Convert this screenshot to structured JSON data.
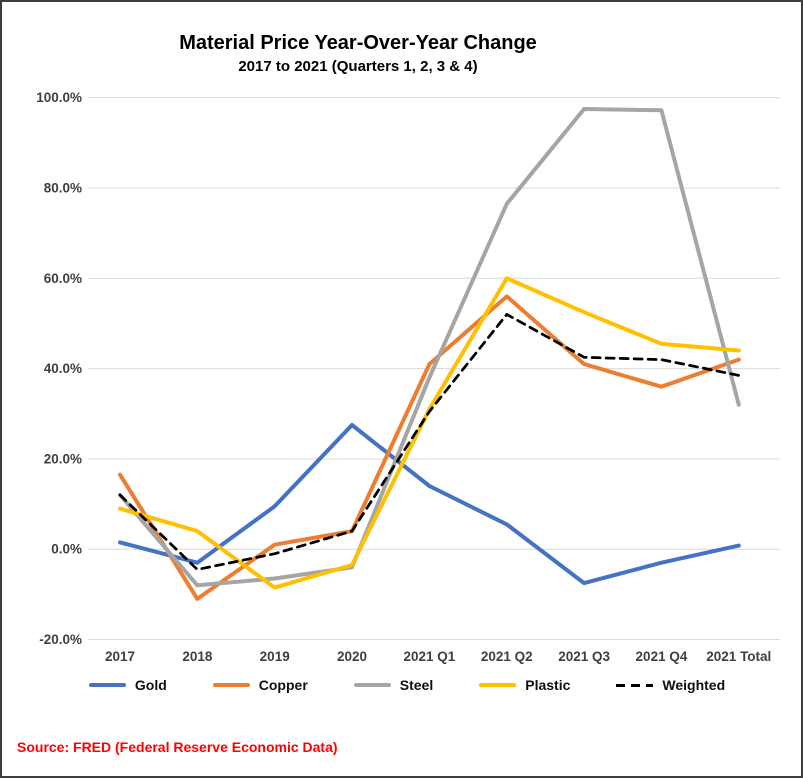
{
  "title": {
    "text": "Material Price Year-Over-Year Change",
    "subtitle": "2017 to 2021 (Quarters 1, 2, 3 & 4)"
  },
  "source": {
    "text": "Source: FRED (Federal Reserve Economic Data)",
    "color": "#FF0000"
  },
  "colors": {
    "gridline": "#D9D9D9",
    "axis_label": "#3F3F3F",
    "background": "#FFFFFF",
    "frame_border": "#3F3F3F"
  },
  "chart_data": {
    "type": "line",
    "title": "Material Price Year-Over-Year Change",
    "subtitle": "2017 to 2021 (Quarters 1, 2, 3 & 4)",
    "categories": [
      "2017",
      "2018",
      "2019",
      "2020",
      "2021 Q1",
      "2021 Q2",
      "2021 Q3",
      "2021 Q4",
      "2021 Total"
    ],
    "series": [
      {
        "name": "Gold",
        "color": "#4472C4",
        "dash": false,
        "values": [
          1.5,
          -3.0,
          9.5,
          27.5,
          14.0,
          5.5,
          -7.5,
          -3.0,
          0.8
        ]
      },
      {
        "name": "Copper",
        "color": "#ED7D31",
        "dash": false,
        "values": [
          16.5,
          -11.0,
          1.0,
          4.0,
          41.0,
          56.0,
          41.0,
          36.0,
          42.0
        ]
      },
      {
        "name": "Steel",
        "color": "#A5A5A5",
        "dash": false,
        "values": [
          12.0,
          -8.0,
          -6.5,
          -4.0,
          38.0,
          76.5,
          97.5,
          97.2,
          32.0
        ]
      },
      {
        "name": "Plastic",
        "color": "#FFC000",
        "dash": false,
        "values": [
          9.0,
          4.0,
          -8.5,
          -3.5,
          31.0,
          60.0,
          52.5,
          45.5,
          44.0
        ]
      },
      {
        "name": "Weighted",
        "color": "#000000",
        "dash": true,
        "values": [
          12.0,
          -4.5,
          -1.0,
          4.0,
          30.5,
          52.0,
          42.5,
          42.0,
          38.5
        ]
      }
    ],
    "ylabel": "",
    "xlabel": "",
    "ylim": [
      -20,
      100
    ],
    "yticks": [
      {
        "label": "100.0%",
        "value": 100
      },
      {
        "label": "80.0%",
        "value": 80
      },
      {
        "label": "60.0%",
        "value": 60
      },
      {
        "label": "40.0%",
        "value": 40
      },
      {
        "label": "20.0%",
        "value": 20
      },
      {
        "label": "0.0%",
        "value": 0
      },
      {
        "label": "-20.0%",
        "value": -20
      }
    ],
    "grid": "horizontal",
    "legend_position": "bottom"
  }
}
